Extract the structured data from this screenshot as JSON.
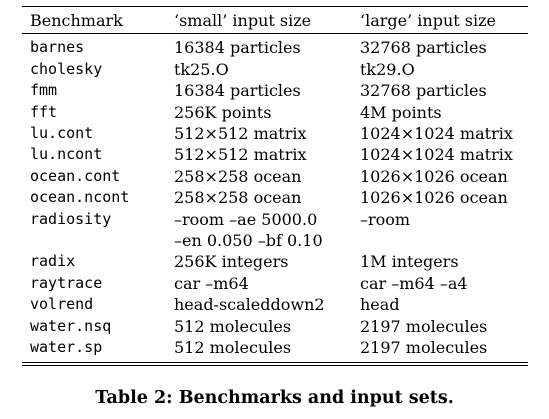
{
  "table": {
    "headers": [
      "Benchmark",
      "‘small’ input size",
      "‘large’ input size"
    ],
    "rows": [
      {
        "benchmark": "barnes",
        "small": [
          "16384 particles"
        ],
        "large": [
          "32768 particles"
        ]
      },
      {
        "benchmark": "cholesky",
        "small": [
          "tk25.O"
        ],
        "large": [
          "tk29.O"
        ]
      },
      {
        "benchmark": "fmm",
        "small": [
          "16384 particles"
        ],
        "large": [
          "32768 particles"
        ]
      },
      {
        "benchmark": "fft",
        "small": [
          "256K points"
        ],
        "large": [
          "4M points"
        ]
      },
      {
        "benchmark": "lu.cont",
        "small": [
          "512×512 matrix"
        ],
        "large": [
          "1024×1024 matrix"
        ]
      },
      {
        "benchmark": "lu.ncont",
        "small": [
          "512×512 matrix"
        ],
        "large": [
          "1024×1024 matrix"
        ]
      },
      {
        "benchmark": "ocean.cont",
        "small": [
          "258×258 ocean"
        ],
        "large": [
          "1026×1026 ocean"
        ]
      },
      {
        "benchmark": "ocean.ncont",
        "small": [
          "258×258 ocean"
        ],
        "large": [
          "1026×1026 ocean"
        ]
      },
      {
        "benchmark": "radiosity",
        "small": [
          "–room –ae 5000.0",
          "–en 0.050 –bf 0.10"
        ],
        "large": [
          "–room"
        ]
      },
      {
        "benchmark": "radix",
        "small": [
          "256K integers"
        ],
        "large": [
          "1M integers"
        ]
      },
      {
        "benchmark": "raytrace",
        "small": [
          "car –m64"
        ],
        "large": [
          "car –m64 –a4"
        ]
      },
      {
        "benchmark": "volrend",
        "small": [
          "head-scaleddown2"
        ],
        "large": [
          "head"
        ]
      },
      {
        "benchmark": "water.nsq",
        "small": [
          "512 molecules"
        ],
        "large": [
          "2197 molecules"
        ]
      },
      {
        "benchmark": "water.sp",
        "small": [
          "512 molecules"
        ],
        "large": [
          "2197 molecules"
        ]
      }
    ]
  },
  "caption": "Table 2: Benchmarks and input sets."
}
